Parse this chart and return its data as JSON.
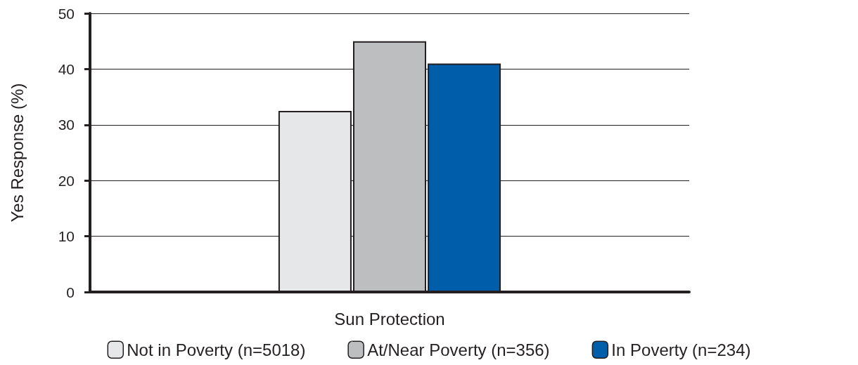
{
  "chart_data": {
    "type": "bar",
    "ylabel": "Yes Response (%)",
    "categories": [
      "Sun Protection"
    ],
    "series": [
      {
        "name": "Not in Poverty (n=5018)",
        "color": "#e6e7e9",
        "values": [
          32.5
        ]
      },
      {
        "name": "At/Near Poverty (n=356)",
        "color": "#bcbec0",
        "values": [
          45
        ]
      },
      {
        "name": "In Poverty (n=234)",
        "color": "#005daa",
        "values": [
          41
        ]
      }
    ],
    "ylim": [
      0,
      50
    ],
    "yticks": [
      0,
      10,
      20,
      30,
      40,
      50
    ],
    "grid": "y",
    "legend": "bottom"
  }
}
